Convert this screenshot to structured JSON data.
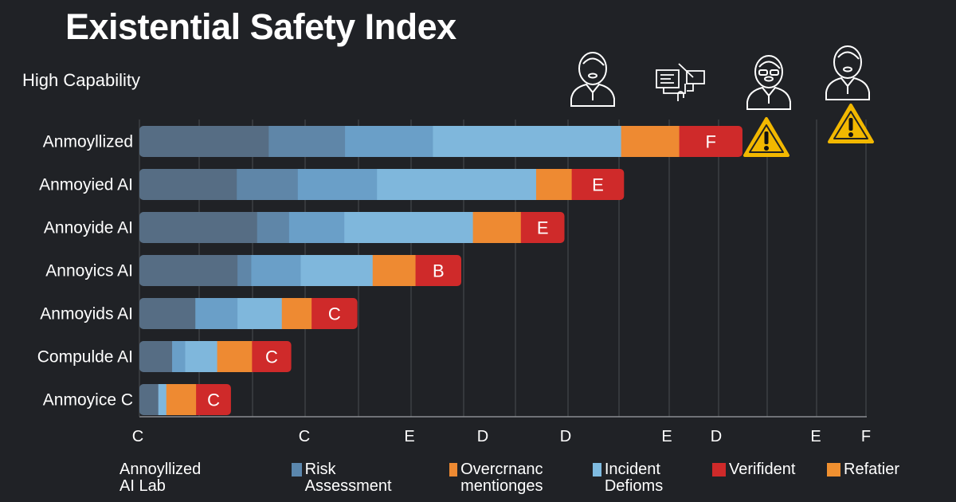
{
  "chart_data": {
    "type": "bar",
    "orientation": "horizontal-stacked",
    "title": "Existential Safety Index",
    "subtitle": "High Capability",
    "categories": [
      "Anmoyllized",
      "Anmoyied AI",
      "Annoyide AI",
      "Annoyics AI",
      "Anmoyids AI",
      "Compulde AI",
      "Anmoyice C"
    ],
    "value_unit": "percent of axis span",
    "series": [
      {
        "color": "#566d84",
        "values": [
          17.8,
          13.4,
          16.2,
          13.5,
          7.7,
          4.5,
          2.6
        ]
      },
      {
        "color": "#5f86a8",
        "values": [
          10.5,
          8.4,
          4.4,
          1.9,
          0,
          0,
          0
        ]
      },
      {
        "color": "#6a9fc8",
        "values": [
          12.1,
          10.9,
          7.6,
          6.8,
          5.8,
          1.8,
          0
        ]
      },
      {
        "color": "#7fb7dc",
        "values": [
          25.9,
          21.9,
          17.7,
          9.9,
          6.1,
          4.4,
          1.1
        ]
      },
      {
        "color": "#ee8a32",
        "values": [
          8.0,
          4.9,
          6.6,
          5.9,
          4.1,
          4.8,
          4.1
        ]
      },
      {
        "color": "#cf2a2a",
        "values": [
          8.7,
          7.2,
          6.0,
          6.3,
          6.3,
          5.4,
          4.8
        ]
      }
    ],
    "grades": [
      "F",
      "E",
      "E",
      "B",
      "C",
      "C",
      "C"
    ],
    "x_tick_labels": [
      "C",
      "C",
      "E",
      "D",
      "D",
      "E",
      "D",
      "E",
      "F"
    ],
    "grid": true,
    "legend_position": "bottom",
    "legend": {
      "title": "Annoyllized AI Lab",
      "entries": [
        {
          "label": "Risk Assessment",
          "color": "#5b87ad"
        },
        {
          "label": "Overcrnanc mentionges",
          "color": "#ee8a32"
        },
        {
          "label": "Incident Defioms",
          "color": "#7fbbe0"
        },
        {
          "label": "Verifident",
          "color": "#cf2a2a"
        },
        {
          "label": "Refatier",
          "color": "#ef9030"
        }
      ]
    },
    "icons": [
      "person-icon",
      "documents-icon",
      "person-glasses-icon",
      "person-icon"
    ],
    "warnings": [
      "warning-icon",
      "warning-icon"
    ]
  }
}
